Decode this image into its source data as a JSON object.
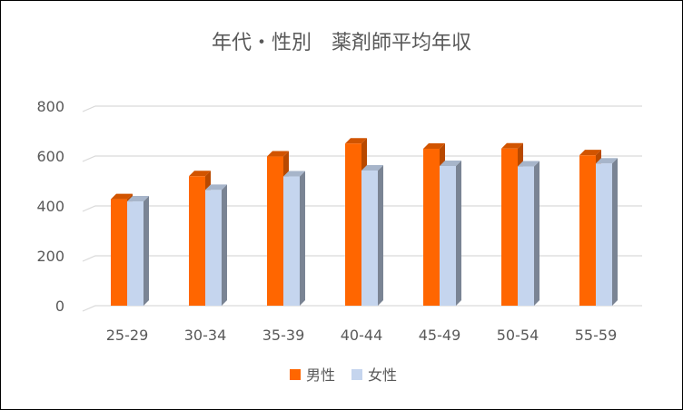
{
  "chart_data": {
    "type": "bar",
    "title": "年代・性別　薬剤師平均年収",
    "xlabel": "",
    "ylabel": "",
    "categories": [
      "25-29",
      "30-34",
      "35-39",
      "40-44",
      "45-49",
      "50-54",
      "55-59"
    ],
    "series": [
      {
        "name": "男性",
        "values": [
          427,
          519,
          598,
          650,
          629,
          630,
          603
        ],
        "color": "#ff6600"
      },
      {
        "name": "女性",
        "values": [
          418,
          464,
          518,
          542,
          560,
          558,
          570
        ],
        "color": "#c5d5ee"
      }
    ],
    "ylim": [
      0,
      800
    ],
    "yticks": [
      0,
      200,
      400,
      600,
      800
    ],
    "grid": true,
    "legend": "bottom",
    "three_d": true
  }
}
